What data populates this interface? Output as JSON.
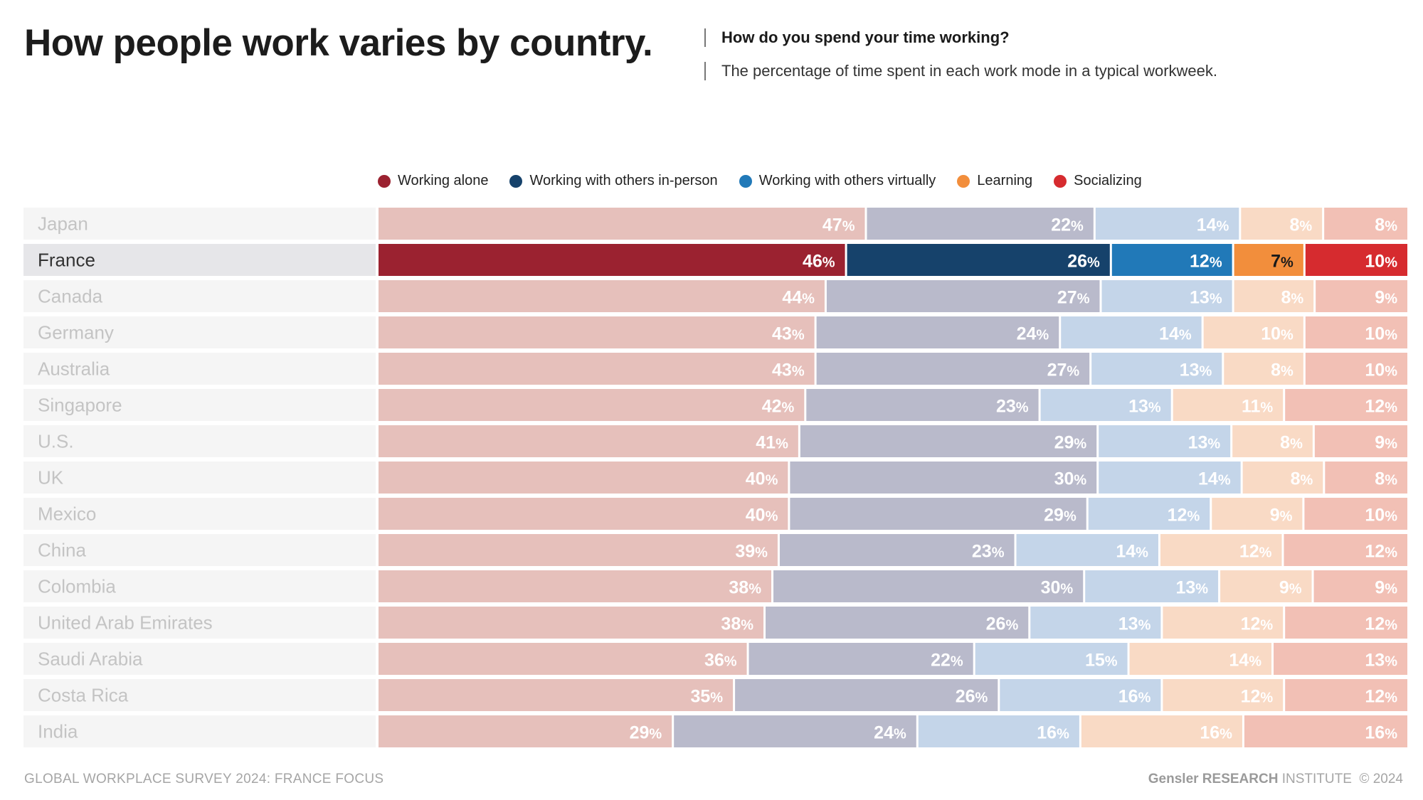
{
  "header": {
    "title": "How people work varies by country.",
    "question": "How do you spend your time working?",
    "description": "The percentage of time spent in each work mode in a typical workweek."
  },
  "colors": {
    "active": [
      "#9b2230",
      "#16426b",
      "#2179b8",
      "#f28e3c",
      "#d62b2f"
    ],
    "faded": [
      "#e6c0bb",
      "#b9bacb",
      "#c4d5e9",
      "#f9dac5",
      "#f2c0b5"
    ],
    "label_active": "#333333",
    "label_faded": "#c4c4c4",
    "row_active_bg": "#e6e6e9",
    "row_faded_bg": "#f5f5f5"
  },
  "chart_data": {
    "type": "bar",
    "orientation": "horizontal",
    "stacked": true,
    "unit": "%",
    "highlight": "France",
    "categories": [
      "Japan",
      "France",
      "Canada",
      "Germany",
      "Australia",
      "Singapore",
      "U.S.",
      "UK",
      "Mexico",
      "China",
      "Colombia",
      "United Arab Emirates",
      "Saudi Arabia",
      "Costa Rica",
      "India"
    ],
    "series": [
      {
        "name": "Working alone",
        "values": [
          47,
          46,
          44,
          43,
          43,
          42,
          41,
          40,
          40,
          39,
          38,
          38,
          36,
          35,
          29
        ]
      },
      {
        "name": "Working with others in-person",
        "values": [
          22,
          26,
          27,
          24,
          27,
          23,
          29,
          30,
          29,
          23,
          30,
          26,
          22,
          26,
          24
        ]
      },
      {
        "name": "Working with others virtually",
        "values": [
          14,
          12,
          13,
          14,
          13,
          13,
          13,
          14,
          12,
          14,
          13,
          13,
          15,
          16,
          16
        ]
      },
      {
        "name": "Learning",
        "values": [
          8,
          7,
          8,
          10,
          8,
          11,
          8,
          8,
          9,
          12,
          9,
          12,
          14,
          12,
          16
        ]
      },
      {
        "name": "Socializing",
        "values": [
          8,
          10,
          9,
          10,
          10,
          12,
          9,
          8,
          10,
          12,
          9,
          12,
          13,
          12,
          16
        ]
      }
    ],
    "legend": "top-center"
  },
  "footer": {
    "source": "GLOBAL WORKPLACE SURVEY 2024: FRANCE FOCUS",
    "brand": "Gensler RESEARCH",
    "brand_suffix": "INSTITUTE",
    "copyright": "© 2024"
  }
}
